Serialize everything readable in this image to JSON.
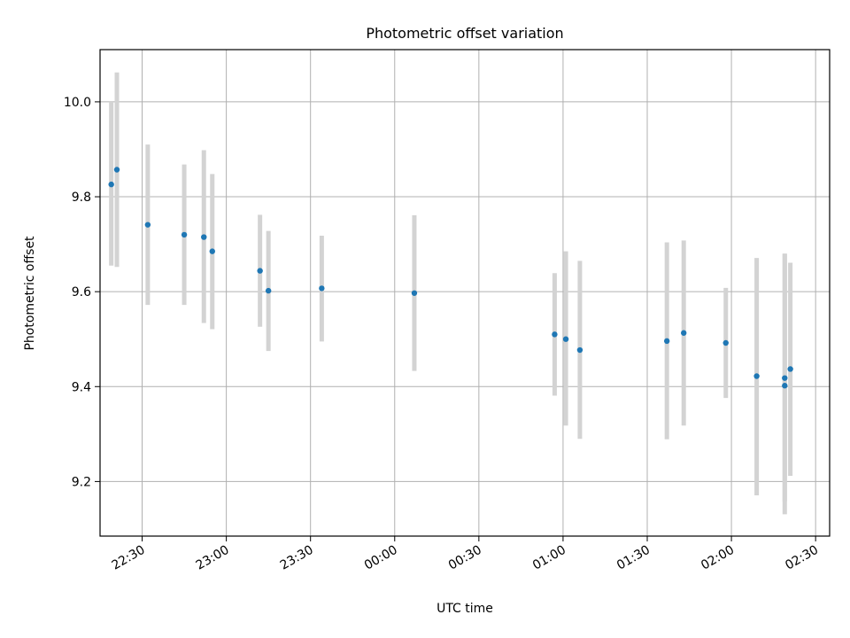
{
  "chart_data": {
    "type": "scatter",
    "title": "Photometric offset variation",
    "xlabel": "UTC time",
    "ylabel": "Photometric offset",
    "grid": true,
    "legend": "none",
    "x_axis": "time (HH:MM, UTC)",
    "xlim": [
      "22:15",
      "02:35"
    ],
    "ylim": [
      9.085,
      10.11
    ],
    "x_ticks": [
      "22:30",
      "23:00",
      "23:30",
      "00:00",
      "00:30",
      "01:00",
      "01:30",
      "02:00",
      "02:30"
    ],
    "y_ticks": [
      "9.2",
      "9.4",
      "9.6",
      "9.8",
      "10.0"
    ],
    "marker_color": "#1f77b4",
    "errorbar_color": "#d3d3d3",
    "points": [
      {
        "t": "22:19",
        "y": 9.826,
        "lo": 9.655,
        "hi": 10.0
      },
      {
        "t": "22:21",
        "y": 9.857,
        "lo": 9.652,
        "hi": 10.062
      },
      {
        "t": "22:32",
        "y": 9.741,
        "lo": 9.572,
        "hi": 9.91
      },
      {
        "t": "22:45",
        "y": 9.72,
        "lo": 9.572,
        "hi": 9.868
      },
      {
        "t": "22:52",
        "y": 9.715,
        "lo": 9.534,
        "hi": 9.898
      },
      {
        "t": "22:55",
        "y": 9.685,
        "lo": 9.521,
        "hi": 9.848
      },
      {
        "t": "23:12",
        "y": 9.644,
        "lo": 9.526,
        "hi": 9.762
      },
      {
        "t": "23:15",
        "y": 9.602,
        "lo": 9.475,
        "hi": 9.728
      },
      {
        "t": "23:34",
        "y": 9.607,
        "lo": 9.495,
        "hi": 9.718
      },
      {
        "t": "00:07",
        "y": 9.597,
        "lo": 9.433,
        "hi": 9.761
      },
      {
        "t": "00:57",
        "y": 9.51,
        "lo": 9.381,
        "hi": 9.639
      },
      {
        "t": "01:01",
        "y": 9.5,
        "lo": 9.318,
        "hi": 9.685
      },
      {
        "t": "01:06",
        "y": 9.477,
        "lo": 9.29,
        "hi": 9.665
      },
      {
        "t": "01:37",
        "y": 9.496,
        "lo": 9.289,
        "hi": 9.704
      },
      {
        "t": "01:43",
        "y": 9.513,
        "lo": 9.318,
        "hi": 9.708
      },
      {
        "t": "01:58",
        "y": 9.492,
        "lo": 9.376,
        "hi": 9.608
      },
      {
        "t": "02:09",
        "y": 9.422,
        "lo": 9.171,
        "hi": 9.671
      },
      {
        "t": "02:19",
        "y": 9.402,
        "lo": 9.131,
        "hi": 9.68
      },
      {
        "t": "02:19",
        "y": 9.418,
        "lo": 9.158,
        "hi": 9.68
      },
      {
        "t": "02:21",
        "y": 9.437,
        "lo": 9.212,
        "hi": 9.661
      }
    ]
  }
}
